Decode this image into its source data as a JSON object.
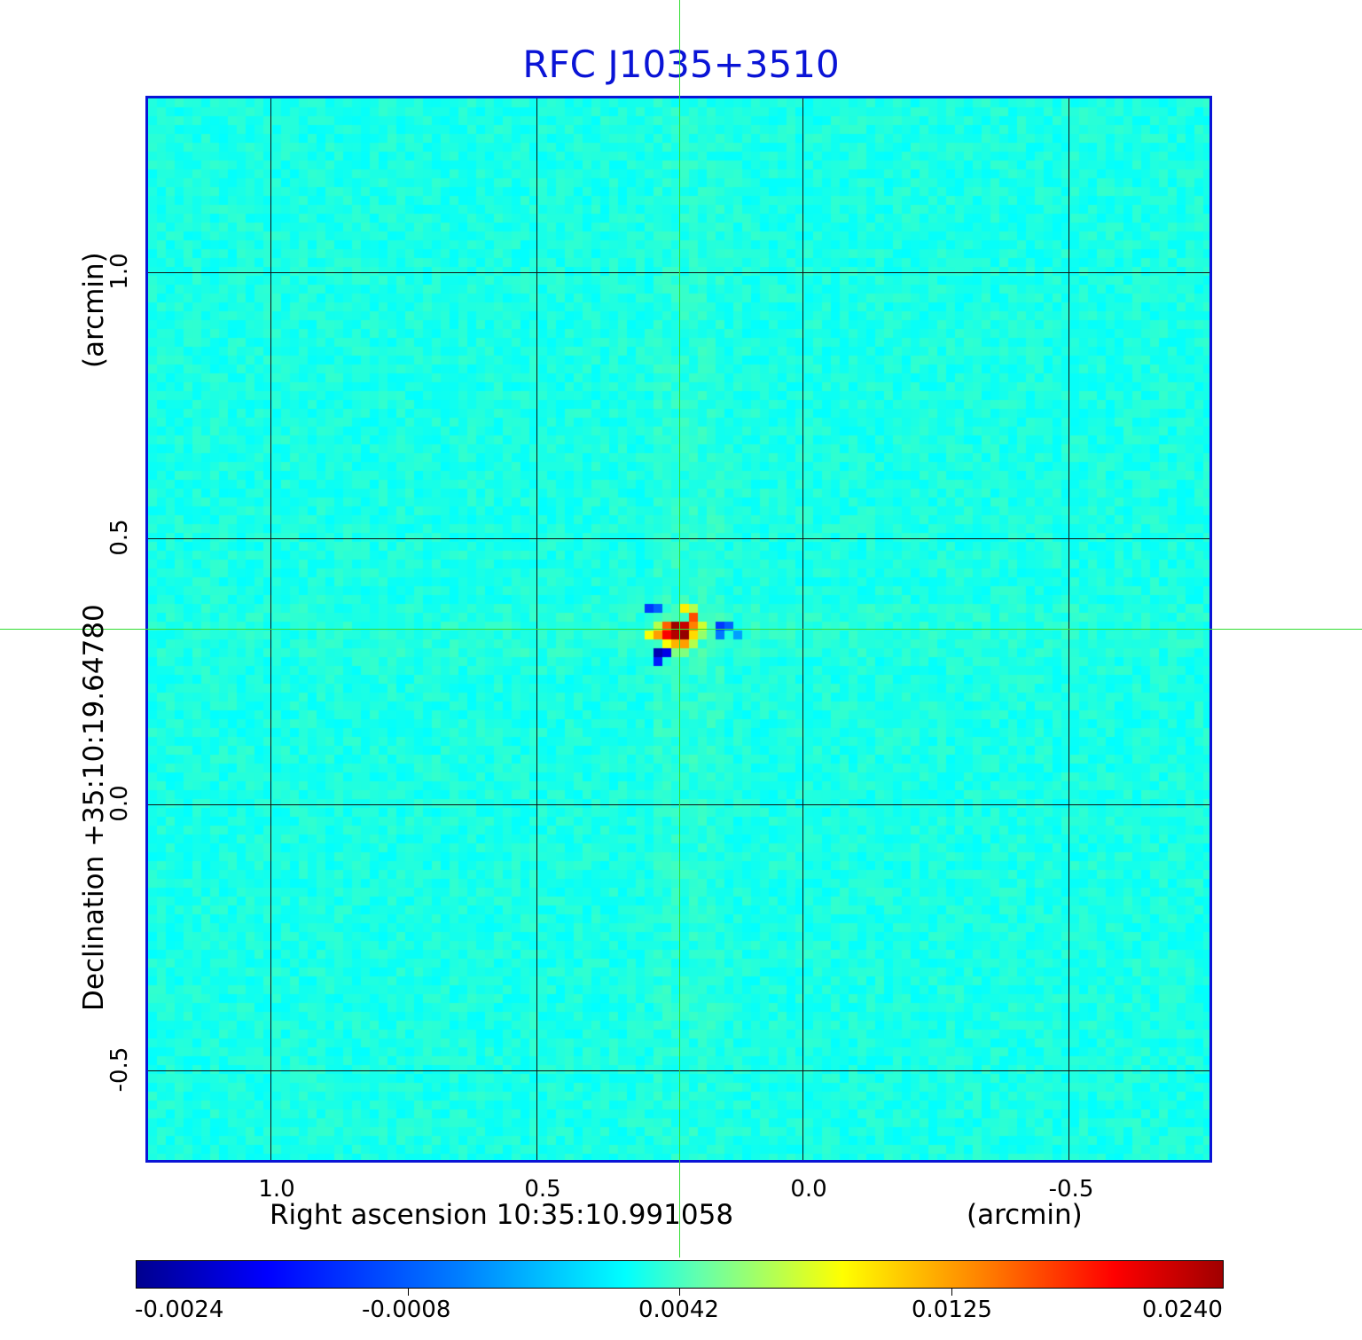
{
  "title": "RFC J1035+3510",
  "x_axis": {
    "label": "Right ascension  10:35:10.991058",
    "unit": "(arcmin)",
    "ticks": [
      "1.0",
      "0.5",
      "0.0",
      "-0.5"
    ]
  },
  "y_axis": {
    "label": "Declination  +35:10:19.64780",
    "unit": "(arcmin)",
    "ticks": [
      "1.0",
      "0.5",
      "0.0",
      "-0.5"
    ]
  },
  "colorbar": {
    "ticks": [
      "-0.0024",
      "-0.0008",
      "0.0042",
      "0.0125",
      "0.0240"
    ]
  },
  "colors": {
    "title": "#0a14d6",
    "frame": "#0a14d6",
    "crosshair": "#33dd33",
    "background_field": "#1ad6f0"
  }
}
